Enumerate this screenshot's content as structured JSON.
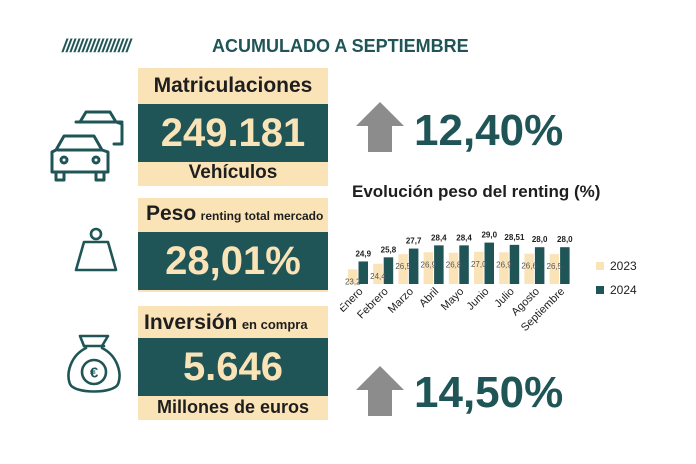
{
  "header": {
    "slashes": "/////////////////",
    "title": "ACUMULADO A SEPTIEMBRE"
  },
  "colors": {
    "dark_teal": "#1f5557",
    "cream": "#fbe3b8",
    "arrow_gray": "#8c8c8c"
  },
  "icons": {
    "cars": "cars-icon",
    "weight": "weight-icon",
    "money_bag": "money-bag-icon",
    "arrow_up": "arrow-up-icon"
  },
  "registrations": {
    "label": "Matriculaciones",
    "value": "249.181",
    "unit": "Vehículos",
    "growth": "12,40%"
  },
  "share": {
    "label": "Peso",
    "label_suffix": "renting total mercado",
    "value": "28,01%"
  },
  "investment": {
    "label": "Inversión",
    "label_suffix": "en compra",
    "value": "5.646",
    "unit": "Millones de euros",
    "growth": "14,50%"
  },
  "chart_data": {
    "type": "bar",
    "title": "Evolución peso del renting (%)",
    "categories": [
      "Enero",
      "Febrero",
      "Marzo",
      "Abril",
      "Mayo",
      "Junio",
      "Julio",
      "Agosto",
      "Septiembre"
    ],
    "series": [
      {
        "name": "2023",
        "color": "#fbe3b8",
        "values": [
          23.2,
          24.4,
          26.5,
          26.9,
          26.8,
          27.0,
          26.9,
          26.6,
          26.5
        ],
        "labels": [
          "23,2",
          "24,4",
          "26,5",
          "26,9",
          "26,8",
          "27,0",
          "26,9",
          "26,6",
          "26,5"
        ]
      },
      {
        "name": "2024",
        "color": "#1f5557",
        "values": [
          24.9,
          25.8,
          27.7,
          28.4,
          28.4,
          29.0,
          28.51,
          28.0,
          28.0
        ],
        "labels": [
          "24,9",
          "25,8",
          "27,7",
          "28,4",
          "28,4",
          "29,0",
          "28,51",
          "28,0",
          "28,0"
        ]
      }
    ],
    "legend": "right"
  }
}
